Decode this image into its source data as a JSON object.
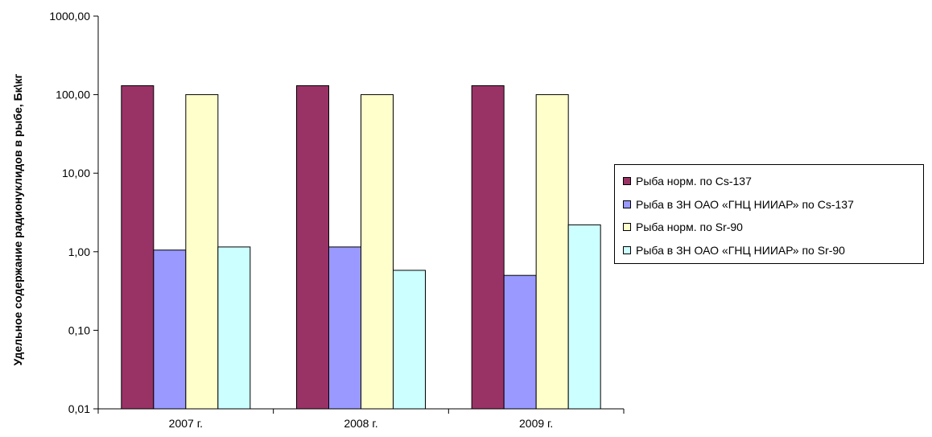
{
  "chart_data": {
    "type": "bar",
    "yscale": "log",
    "ylabel": "Удельное содержание радионуклидов в рыбе, Бк\\кг",
    "xlabel": "",
    "ylim": [
      0.01,
      1000
    ],
    "yticks": [
      "0,01",
      "0,10",
      "1,00",
      "10,00",
      "100,00",
      "1000,00"
    ],
    "categories": [
      "2007 г.",
      "2008 г.",
      "2009 г."
    ],
    "series": [
      {
        "name": "Рыба норм. по Cs-137",
        "color": "#993366",
        "values": [
          130,
          130,
          130
        ]
      },
      {
        "name": "Рыба в ЗН ОАО «ГНЦ НИИАР» по Cs-137",
        "color": "#9999FF",
        "values": [
          1.05,
          1.15,
          0.5
        ]
      },
      {
        "name": "Рыба норм. по Sr-90",
        "color": "#FFFFCC",
        "values": [
          100,
          100,
          100
        ]
      },
      {
        "name": "Рыба в ЗН ОАО «ГНЦ НИИАР» по Sr-90",
        "color": "#CCFFFF",
        "values": [
          1.15,
          0.58,
          2.2
        ]
      }
    ],
    "grid": false,
    "legend_position": "right"
  }
}
